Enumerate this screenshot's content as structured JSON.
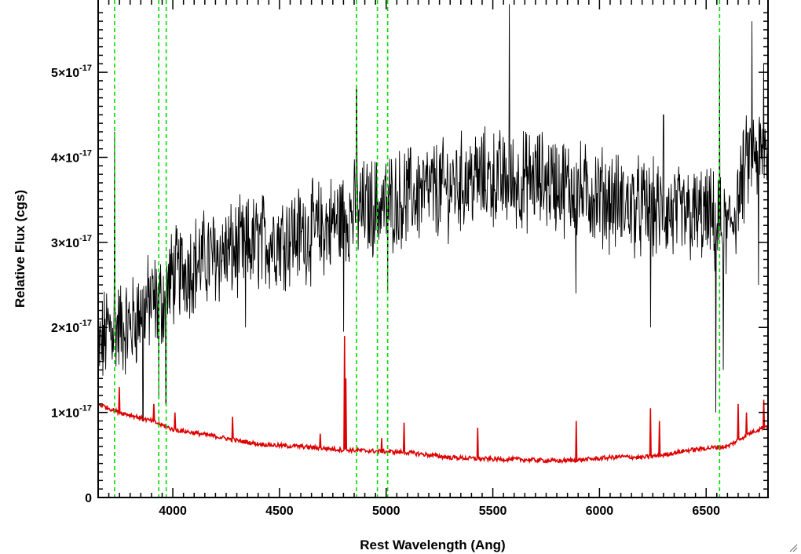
{
  "chart_data": {
    "type": "line",
    "xlabel": "Rest Wavelength (Ang)",
    "ylabel": "Relative Flux (cgs)",
    "xlim": [
      3650,
      6790
    ],
    "ylim": [
      0,
      5.85e-17
    ],
    "x_ticks": [
      {
        "value": 4000,
        "label": "4000"
      },
      {
        "value": 4500,
        "label": "4500"
      },
      {
        "value": 5000,
        "label": "5000"
      },
      {
        "value": 5500,
        "label": "5500"
      },
      {
        "value": 6000,
        "label": "6000"
      },
      {
        "value": 6500,
        "label": "6500"
      }
    ],
    "y_ticks": [
      {
        "value": 0,
        "label": "0",
        "exp": ""
      },
      {
        "value": 1e-17,
        "label": "1×10",
        "exp": "-17"
      },
      {
        "value": 2e-17,
        "label": "2×10",
        "exp": "-17"
      },
      {
        "value": 3e-17,
        "label": "3×10",
        "exp": "-17"
      },
      {
        "value": 4e-17,
        "label": "4×10",
        "exp": "-17"
      },
      {
        "value": 5e-17,
        "label": "5×10",
        "exp": "-17"
      }
    ],
    "series": [
      {
        "color": "#000000",
        "style": "solid",
        "noisy": true,
        "x": [
          3650,
          3700,
          3750,
          3800,
          3850,
          3900,
          3950,
          3980,
          4000,
          4100,
          4200,
          4300,
          4400,
          4500,
          4600,
          4700,
          4800,
          4900,
          5000,
          5100,
          5200,
          5300,
          5400,
          5500,
          5600,
          5700,
          5800,
          5900,
          6000,
          6100,
          6200,
          6300,
          6400,
          6500,
          6550,
          6600,
          6650,
          6700,
          6790
        ],
        "y": [
          1.7e-17,
          2e-17,
          2e-17,
          2e-17,
          2.2e-17,
          2.3e-17,
          2.3e-17,
          2.5e-17,
          2.6e-17,
          2.75e-17,
          2.85e-17,
          2.9e-17,
          3e-17,
          3.05e-17,
          3.1e-17,
          3.15e-17,
          3.3e-17,
          3.4e-17,
          3.45e-17,
          3.55e-17,
          3.6e-17,
          3.65e-17,
          3.75e-17,
          3.75e-17,
          3.7e-17,
          3.75e-17,
          3.7e-17,
          3.6e-17,
          3.55e-17,
          3.45e-17,
          3.4e-17,
          3.35e-17,
          3.3e-17,
          3.3e-17,
          3.2e-17,
          3.1e-17,
          3.5e-17,
          4e-17,
          4e-17
        ],
        "features": [
          {
            "x": 3727,
            "y": 4.3e-17
          },
          {
            "x": 3860,
            "y": 9e-18
          },
          {
            "x": 3934,
            "y": 1.2e-17
          },
          {
            "x": 3968,
            "y": 1.1e-17
          },
          {
            "x": 4340,
            "y": 2e-17
          },
          {
            "x": 4800,
            "y": 1.95e-17
          },
          {
            "x": 4861,
            "y": 4.8e-17
          },
          {
            "x": 5007,
            "y": 2.4e-17
          },
          {
            "x": 5577,
            "y": 5.8e-17
          },
          {
            "x": 5890,
            "y": 2.4e-17
          },
          {
            "x": 6240,
            "y": 2e-17
          },
          {
            "x": 6300,
            "y": 4.5e-17
          },
          {
            "x": 6545,
            "y": 1e-17
          },
          {
            "x": 6563,
            "y": 5.4e-17
          },
          {
            "x": 6580,
            "y": 1.5e-17
          },
          {
            "x": 6715,
            "y": 5.6e-17
          },
          {
            "x": 6745,
            "y": 2.5e-17
          },
          {
            "x": 6770,
            "y": 5.1e-17
          }
        ]
      },
      {
        "color": "#dd0000",
        "style": "solid",
        "noisy": false,
        "x": [
          3650,
          3700,
          3750,
          3800,
          3900,
          4000,
          4100,
          4200,
          4300,
          4400,
          4500,
          4600,
          4700,
          4800,
          4900,
          5000,
          5100,
          5200,
          5300,
          5400,
          5500,
          5600,
          5700,
          5800,
          5900,
          6000,
          6100,
          6200,
          6300,
          6400,
          6500,
          6600,
          6700,
          6790
        ],
        "y": [
          1.1e-17,
          1.05e-17,
          1e-17,
          9.7e-18,
          9e-18,
          8e-18,
          7.6e-18,
          7.2e-18,
          6.7e-18,
          6.3e-18,
          6.1e-18,
          6e-18,
          5.8e-18,
          5.6e-18,
          5.5e-18,
          5.4e-18,
          5.3e-18,
          5e-18,
          4.7e-18,
          4.6e-18,
          4.5e-18,
          4.5e-18,
          4.4e-18,
          4.3e-18,
          4.4e-18,
          4.6e-18,
          4.8e-18,
          4.7e-18,
          5e-18,
          5.5e-18,
          5.8e-18,
          6e-18,
          7.5e-18,
          8.5e-18
        ],
        "features": [
          {
            "x": 3750,
            "y": 1.3e-17
          },
          {
            "x": 3910,
            "y": 1.1e-17
          },
          {
            "x": 4010,
            "y": 1e-17
          },
          {
            "x": 4280,
            "y": 9.5e-18
          },
          {
            "x": 4690,
            "y": 7.5e-18
          },
          {
            "x": 4805,
            "y": 1.9e-17
          },
          {
            "x": 4810,
            "y": 1.4e-17
          },
          {
            "x": 4980,
            "y": 7e-18
          },
          {
            "x": 5085,
            "y": 8.8e-18
          },
          {
            "x": 5430,
            "y": 8.2e-18
          },
          {
            "x": 5890,
            "y": 9e-18
          },
          {
            "x": 6240,
            "y": 1.05e-17
          },
          {
            "x": 6280,
            "y": 9e-18
          },
          {
            "x": 6650,
            "y": 1.1e-17
          },
          {
            "x": 6690,
            "y": 1e-17
          },
          {
            "x": 6770,
            "y": 1.15e-17
          }
        ]
      }
    ],
    "vlines": {
      "color": "#00dd00",
      "style": "dashed",
      "x": [
        3727,
        3934,
        3969,
        4861,
        4959,
        5007,
        6563
      ]
    },
    "grid": false,
    "legend": "none"
  }
}
